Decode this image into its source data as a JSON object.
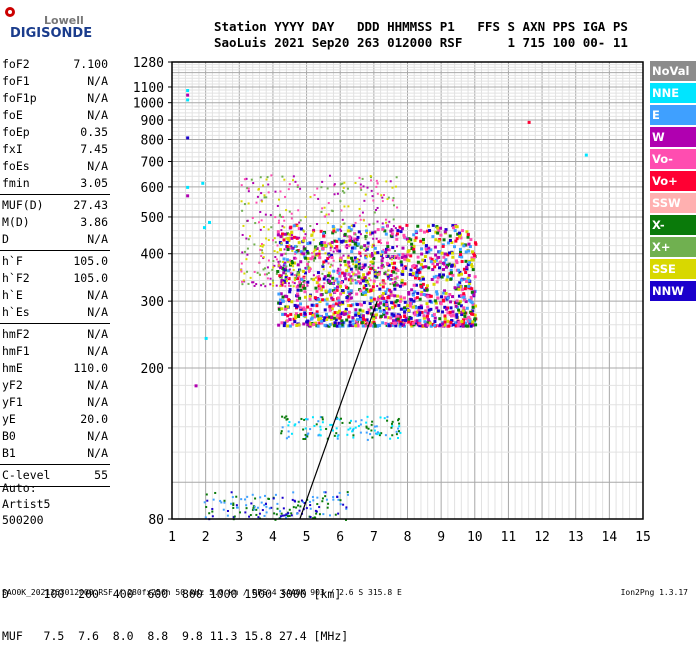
{
  "logo": {
    "line1": "Lowell",
    "line2": "DIGISONDE"
  },
  "header": {
    "line1": "Station YYYY DAY   DDD HHMMSS P1   FFS S AXN PPS IGA PS",
    "line2": "SaoLuis 2021 Sep20 263 012000 RSF      1 715 100 00- 11"
  },
  "params_a": [
    {
      "key": "foF2",
      "value": "7.100"
    },
    {
      "key": "foF1",
      "value": "N/A"
    },
    {
      "key": "foF1p",
      "value": "N/A"
    },
    {
      "key": "foE",
      "value": "N/A"
    },
    {
      "key": "foEp",
      "value": "0.35"
    },
    {
      "key": "fxI",
      "value": "7.45"
    },
    {
      "key": "foEs",
      "value": "N/A"
    },
    {
      "key": "fmin",
      "value": "3.05"
    }
  ],
  "params_b": [
    {
      "key": "MUF(D)",
      "value": "27.43"
    },
    {
      "key": "M(D)",
      "value": "3.86"
    },
    {
      "key": "D",
      "value": "N/A"
    }
  ],
  "params_c": [
    {
      "key": "h`F",
      "value": "105.0"
    },
    {
      "key": "h`F2",
      "value": "105.0"
    },
    {
      "key": "h`E",
      "value": "N/A"
    },
    {
      "key": "h`Es",
      "value": "N/A"
    }
  ],
  "params_d": [
    {
      "key": "hmF2",
      "value": "N/A"
    },
    {
      "key": "hmF1",
      "value": "N/A"
    },
    {
      "key": "hmE",
      "value": "110.0"
    },
    {
      "key": "yF2",
      "value": "N/A"
    },
    {
      "key": "yF1",
      "value": "N/A"
    },
    {
      "key": "yE",
      "value": "20.0"
    },
    {
      "key": "B0",
      "value": "N/A"
    },
    {
      "key": "B1",
      "value": "N/A"
    }
  ],
  "params_e": [
    {
      "key": "C-level",
      "value": "55"
    }
  ],
  "auto": {
    "line1": "Auto:",
    "line2": "Artist5",
    "line3": "500200"
  },
  "legend": [
    {
      "label": "NoVal",
      "color": "#8c8c8c"
    },
    {
      "label": "NNE",
      "color": "#00e5ff"
    },
    {
      "label": "E",
      "color": "#3fa0ff"
    },
    {
      "label": "W",
      "color": "#b000b0"
    },
    {
      "label": "Vo-",
      "color": "#ff4db0"
    },
    {
      "label": "Vo+",
      "color": "#ff0033"
    },
    {
      "label": "SSW",
      "color": "#ffb0b0"
    },
    {
      "label": "X-",
      "color": "#0a7a0a"
    },
    {
      "label": "X+",
      "color": "#70b050"
    },
    {
      "label": "SSE",
      "color": "#d8d800"
    },
    {
      "label": "NNW",
      "color": "#1a00cc"
    }
  ],
  "chart_data": {
    "type": "scatter",
    "title": "",
    "xlabel": "",
    "ylabel": "",
    "xlim": [
      1,
      15
    ],
    "x_ticks": [
      1,
      2,
      3,
      4,
      5,
      6,
      7,
      8,
      9,
      10,
      11,
      12,
      13,
      14,
      15
    ],
    "y_ticks": [
      80,
      200,
      300,
      400,
      500,
      600,
      700,
      800,
      900,
      1000,
      1100,
      1280
    ],
    "y_scale": "log",
    "ylim": [
      80,
      1280
    ],
    "grid": true,
    "legend_position": "right",
    "clusters": [
      {
        "name": "F-layer trace",
        "x_range": [
          3.0,
          10.3
        ],
        "y_range": [
          260,
          480
        ],
        "colors": [
          "Vo-",
          "Vo+",
          "E",
          "X-",
          "W",
          "SSE",
          "NNW"
        ]
      },
      {
        "name": "F-layer diffuse",
        "x_range": [
          3.0,
          7.7
        ],
        "y_range": [
          330,
          650
        ],
        "colors": [
          "W",
          "Vo-",
          "X+",
          "SSE"
        ]
      },
      {
        "name": "E/low trace",
        "x_range": [
          1.9,
          6.2
        ],
        "y_range": [
          80,
          95
        ],
        "colors": [
          "NNW",
          "E",
          "X-"
        ]
      },
      {
        "name": "Es streaks",
        "x_range": [
          4.2,
          7.8
        ],
        "y_range": [
          130,
          150
        ],
        "colors": [
          "NNE",
          "E",
          "X-"
        ]
      }
    ],
    "points": [
      {
        "x": 1.45,
        "y": 1080,
        "c": "NNE"
      },
      {
        "x": 1.45,
        "y": 1050,
        "c": "W"
      },
      {
        "x": 1.45,
        "y": 1020,
        "c": "NNE"
      },
      {
        "x": 1.45,
        "y": 810,
        "c": "NNW"
      },
      {
        "x": 1.45,
        "y": 600,
        "c": "NNE"
      },
      {
        "x": 1.45,
        "y": 570,
        "c": "W"
      },
      {
        "x": 1.9,
        "y": 615,
        "c": "NNE"
      },
      {
        "x": 1.95,
        "y": 470,
        "c": "NNE"
      },
      {
        "x": 2.1,
        "y": 485,
        "c": "NNE"
      },
      {
        "x": 11.6,
        "y": 890,
        "c": "Vo+"
      },
      {
        "x": 13.3,
        "y": 730,
        "c": "NNE"
      },
      {
        "x": 2.0,
        "y": 240,
        "c": "NNE"
      },
      {
        "x": 1.7,
        "y": 180,
        "c": "W"
      }
    ],
    "profile_line": [
      [
        4.8,
        80
      ],
      [
        7.1,
        300
      ]
    ]
  },
  "bottom": {
    "d_row": "D     100  200  400  600  800 1000 1500 3000 [km]",
    "muf_row": "MUF   7.5  7.6  8.0  8.8  9.8 11.3 15.8 27.4 [MHz]"
  },
  "footer": {
    "left": "SAO0K_2021263012000.RSF / 280fx256h 50 kHz 5.0 km / DPS-4 SAA0K 903 / 2.6 S 315.8 E",
    "right": "Ion2Png 1.3.17"
  }
}
